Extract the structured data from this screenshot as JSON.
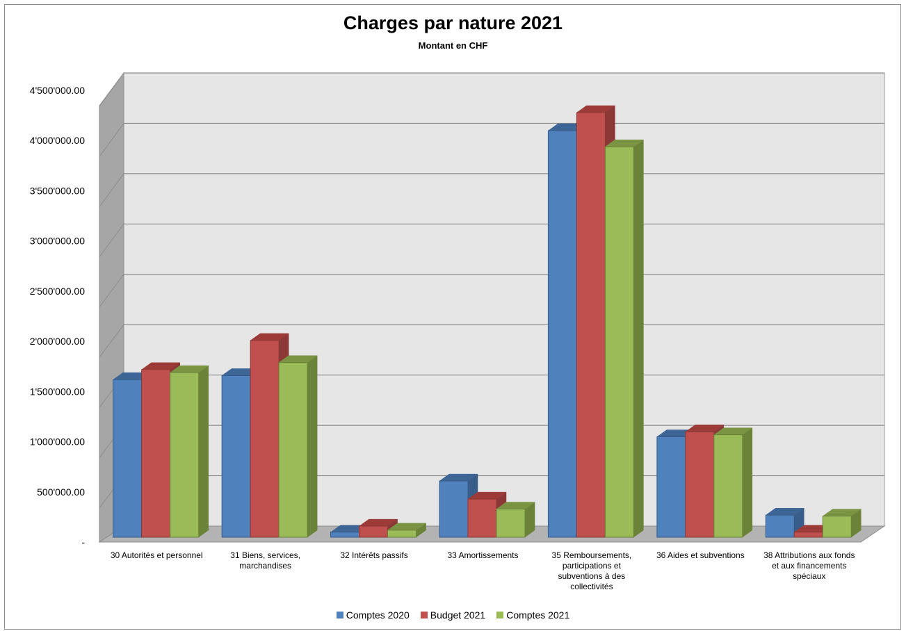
{
  "chart_data": {
    "type": "bar",
    "title": "Charges par nature 2021",
    "subtitle": "Montant en CHF",
    "ylim": [
      0,
      4500000
    ],
    "yticks": [
      {
        "value": 0,
        "label": "-"
      },
      {
        "value": 500000,
        "label": "500'000.00"
      },
      {
        "value": 1000000,
        "label": "1'000'000.00"
      },
      {
        "value": 1500000,
        "label": "1'500'000.00"
      },
      {
        "value": 2000000,
        "label": "2'000'000.00"
      },
      {
        "value": 2500000,
        "label": "2'500'000.00"
      },
      {
        "value": 3000000,
        "label": "3'000'000.00"
      },
      {
        "value": 3500000,
        "label": "3'500'000.00"
      },
      {
        "value": 4000000,
        "label": "4'000'000.00"
      },
      {
        "value": 4500000,
        "label": "4'500'000.00"
      }
    ],
    "categories": [
      [
        "30 Autorités et personnel"
      ],
      [
        "31 Biens, services,",
        "marchandises"
      ],
      [
        "32 Intérêts passifs"
      ],
      [
        "33 Amortissements"
      ],
      [
        "35 Remboursements,",
        "participations et",
        "subventions à des",
        "collectivités"
      ],
      [
        "36 Aides et subventions"
      ],
      [
        "38 Attributions aux fonds",
        "et aux financements",
        "spéciaux"
      ]
    ],
    "series": [
      {
        "name": "Comptes 2020",
        "color": "#4f81bd",
        "top": "#3d6596",
        "side": "#385d8a",
        "values": [
          1570000,
          1610000,
          50000,
          560000,
          4050000,
          1000000,
          220000
        ]
      },
      {
        "name": "Budget 2021",
        "color": "#c0504d",
        "top": "#9c3b38",
        "side": "#8c3836",
        "values": [
          1670000,
          1960000,
          110000,
          380000,
          4230000,
          1050000,
          50000
        ]
      },
      {
        "name": "Comptes 2021",
        "color": "#9bbb59",
        "top": "#7a9443",
        "side": "#6b8239",
        "values": [
          1640000,
          1740000,
          70000,
          280000,
          3890000,
          1020000,
          210000
        ]
      }
    ],
    "grid": true,
    "legend_position": "bottom",
    "style": "3d-clustered-column"
  }
}
